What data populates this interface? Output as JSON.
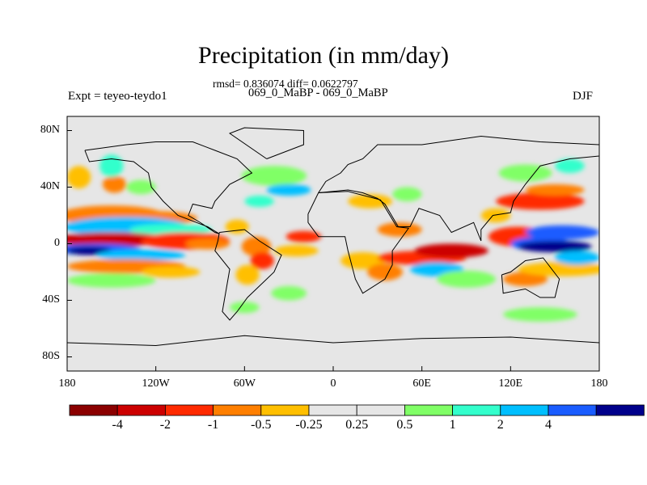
{
  "title": "Precipitation (in mm/day)",
  "stats_line": "rmsd= 0.836074 diff= 0.0622797",
  "experiments_line": "069_0_MaBP - 069_0_MaBP",
  "expt_label": "Expt = teyeo-teydo1",
  "season": "DJF",
  "axes": {
    "lat_labels": [
      {
        "text": "80N",
        "lat": 80
      },
      {
        "text": "40N",
        "lat": 40
      },
      {
        "text": "0",
        "lat": 0
      },
      {
        "text": "40S",
        "lat": -40
      },
      {
        "text": "80S",
        "lat": -80
      }
    ],
    "lon_labels": [
      {
        "text": "180",
        "lon": -180
      },
      {
        "text": "120W",
        "lon": -120
      },
      {
        "text": "60W",
        "lon": -60
      },
      {
        "text": "0",
        "lon": 0
      },
      {
        "text": "60E",
        "lon": 60
      },
      {
        "text": "120E",
        "lon": 120
      },
      {
        "text": "180",
        "lon": 180
      }
    ]
  },
  "colorbar": {
    "colors": [
      "#8b0000",
      "#cc0000",
      "#ff2a00",
      "#ff7f00",
      "#ffbf00",
      "#e6e6e6",
      "#e6e6e6",
      "#80ff66",
      "#33ffcc",
      "#00bfff",
      "#1a5cff",
      "#00008b"
    ],
    "tick_labels": [
      "-4",
      "-2",
      "-1",
      "-0.5",
      "-0.25",
      "0.25",
      "0.5",
      "1",
      "2",
      "4"
    ]
  },
  "field": {
    "background": "#e6e6e6",
    "coastline_color": "#000000"
  }
}
